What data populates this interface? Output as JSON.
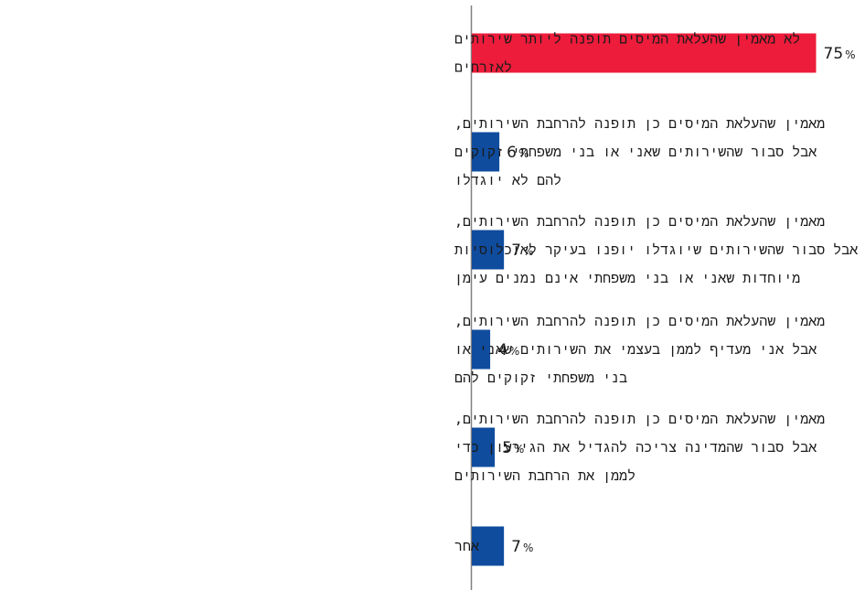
{
  "chart_data": {
    "type": "bar",
    "orientation": "horizontal",
    "categories": [
      [
        "לא מאמין שהעלאת המיסים תופנה ליותר שירותים",
        "לאזרחים"
      ],
      [
        "מאמין שהעלאת המיסים כן תופנה להרחבת השירותים,",
        "אבל סבור שהשירותים שאני או בני משפחתי זקוקים",
        "להם לא יוגדלו"
      ],
      [
        "מאמין שהעלאת המיסים כן תופנה להרחבת השירותים,",
        "אבל סבור שהשירותים שיוגדלו יופנו בעיקר לאוכלוסיות",
        "מיוחדות שאני או בני משפחתי אינם נמנים עימן"
      ],
      [
        "מאמין שהעלאת המיסים כן תופנה להרחבת השירותים,",
        "אבל אני מעדיף לממן בעצמי את השירותים שאני או",
        "בני משפחתי זקוקים להם"
      ],
      [
        "מאמין שהעלאת המיסים כן תופנה להרחבת השירותים,",
        "אבל סבור שהמדינה צריכה להגדיל את הגירעון כדי",
        "לממן את הרחבת השירותים"
      ],
      [
        "אחר"
      ]
    ],
    "values": [
      75,
      6,
      7,
      4,
      5,
      7
    ],
    "value_suffix": "%",
    "colors": [
      "#ee1c3b",
      "#0f4c9e",
      "#0f4c9e",
      "#0f4c9e",
      "#0f4c9e",
      "#0f4c9e"
    ],
    "axis_color": "#808080",
    "grid": false
  }
}
